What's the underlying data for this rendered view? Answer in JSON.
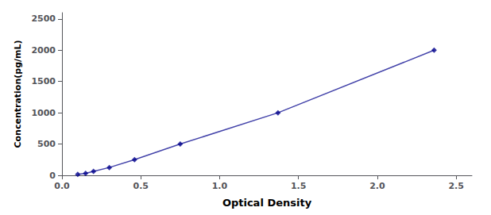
{
  "chart_data": {
    "type": "line",
    "x_label": "Optical Density",
    "y_label": "Concentration(pg/mL)",
    "x": [
      0.1,
      0.15,
      0.2,
      0.3,
      0.46,
      0.75,
      1.37,
      2.36
    ],
    "series": [
      {
        "type": "line",
        "color": "#4444aa",
        "line_style": "solid",
        "values": [
          15.6,
          31.2,
          62.5,
          125,
          250,
          500,
          1000,
          2000
        ]
      },
      {
        "type": "scatter",
        "color": "#00008B",
        "marker": "diamond",
        "values": [
          15.6,
          31.2,
          62.5,
          125,
          250,
          500,
          1000,
          2000
        ]
      }
    ],
    "xlim": [
      0.0,
      2.6
    ],
    "ylim": [
      0,
      2600
    ],
    "xticks": [
      {
        "value": 0,
        "label": "0.0"
      },
      {
        "value": 0.5,
        "label": "0.5"
      },
      {
        "value": 1.0,
        "label": "1.0"
      },
      {
        "value": 1.5,
        "label": "1.5"
      },
      {
        "value": 2.0,
        "label": "2.0"
      },
      {
        "value": 2.5,
        "label": "2.5"
      }
    ],
    "yticks": [
      0,
      500,
      1000,
      1500,
      2000,
      2500
    ],
    "grid": false
  }
}
